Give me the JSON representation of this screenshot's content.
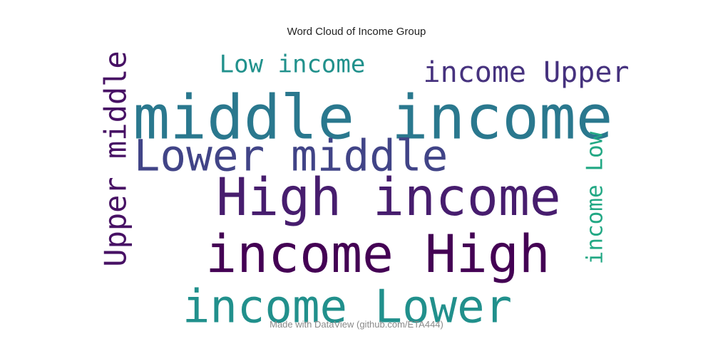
{
  "chart_data": {
    "type": "wordcloud",
    "title": "Word Cloud of Income Group",
    "words": [
      {
        "text": "middle income",
        "weight": 1.0,
        "color": "#2a788e"
      },
      {
        "text": "High income",
        "weight": 0.82,
        "color": "#471d6e"
      },
      {
        "text": "income High",
        "weight": 0.82,
        "color": "#440154"
      },
      {
        "text": "income Lower",
        "weight": 0.72,
        "color": "#21908c"
      },
      {
        "text": "Lower middle",
        "weight": 0.7,
        "color": "#414487"
      },
      {
        "text": "Upper middle",
        "weight": 0.52,
        "color": "#471164"
      },
      {
        "text": "income Upper",
        "weight": 0.5,
        "color": "#46327e"
      },
      {
        "text": "Low income",
        "weight": 0.4,
        "color": "#21918c"
      },
      {
        "text": "income Low",
        "weight": 0.36,
        "color": "#22a884"
      }
    ]
  },
  "footer": "Made with DataView (github.com/ETA444)"
}
